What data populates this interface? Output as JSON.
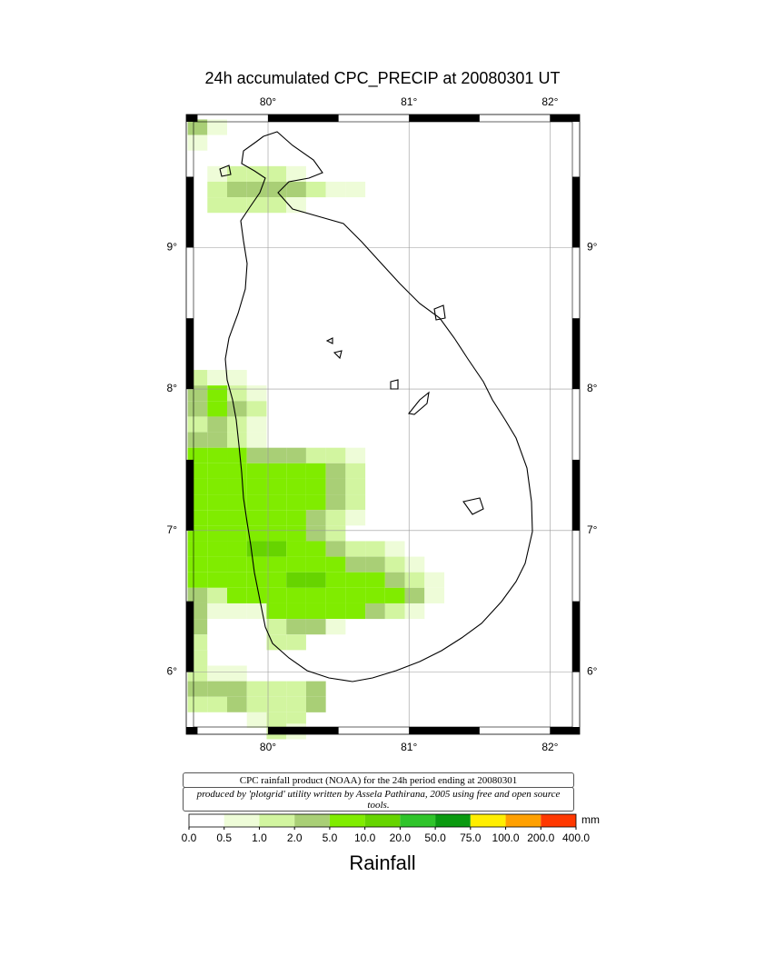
{
  "title": "24h accumulated CPC_PRECIP  at 20080301 UT",
  "map": {
    "xlim": [
      79.42,
      82.21
    ],
    "ylim": [
      5.56,
      9.94
    ],
    "xticks": [
      {
        "value": 80,
        "label": "80°"
      },
      {
        "value": 81,
        "label": "81°"
      },
      {
        "value": 82,
        "label": "82°"
      }
    ],
    "yticks": [
      {
        "value": 9,
        "label": "9°"
      },
      {
        "value": 8,
        "label": "8°"
      },
      {
        "value": 7,
        "label": "7°"
      },
      {
        "value": 6,
        "label": "6°"
      }
    ],
    "grid": true,
    "rainfall_rows": [
      {
        "lat": 9.85,
        "lon0": 79.5,
        "mm": [
          2,
          0.7
        ]
      },
      {
        "lat": 9.74,
        "lon0": 79.5,
        "mm": [
          0.7
        ]
      },
      {
        "lat": 9.52,
        "lon0": 79.64,
        "mm": [
          0.7,
          1,
          1,
          1,
          0.7
        ]
      },
      {
        "lat": 9.41,
        "lon0": 79.64,
        "mm": [
          1.5,
          2,
          2,
          2,
          2,
          1,
          0.7,
          0.7
        ]
      },
      {
        "lat": 9.3,
        "lon0": 79.64,
        "mm": [
          1,
          1,
          1,
          1,
          0.7
        ]
      },
      {
        "lat": 8.08,
        "lon0": 79.5,
        "mm": [
          1,
          0.7,
          0.5
        ]
      },
      {
        "lat": 7.97,
        "lon0": 79.5,
        "mm": [
          2,
          5,
          1,
          0.5
        ]
      },
      {
        "lat": 7.86,
        "lon0": 79.5,
        "mm": [
          2,
          5,
          2,
          1
        ]
      },
      {
        "lat": 7.75,
        "lon0": 79.5,
        "mm": [
          1,
          2,
          1,
          0.7
        ]
      },
      {
        "lat": 7.64,
        "lon0": 79.5,
        "mm": [
          2,
          2,
          1,
          0.7
        ]
      },
      {
        "lat": 7.53,
        "lon0": 79.5,
        "mm": [
          5,
          5,
          5,
          2,
          2,
          2,
          1,
          1,
          0.7
        ]
      },
      {
        "lat": 7.42,
        "lon0": 79.5,
        "mm": [
          5,
          5,
          5,
          5,
          5,
          5,
          5,
          2,
          1
        ]
      },
      {
        "lat": 7.31,
        "lon0": 79.5,
        "mm": [
          5,
          5,
          5,
          5,
          5,
          5,
          5,
          2,
          1
        ]
      },
      {
        "lat": 7.2,
        "lon0": 79.5,
        "mm": [
          5,
          5,
          5,
          5,
          5,
          5,
          5,
          2,
          1
        ]
      },
      {
        "lat": 7.09,
        "lon0": 79.5,
        "mm": [
          5,
          5,
          5,
          5,
          5,
          5,
          2,
          1,
          0.7
        ]
      },
      {
        "lat": 6.98,
        "lon0": 79.5,
        "mm": [
          5,
          5,
          5,
          5,
          5,
          5,
          2,
          1
        ]
      },
      {
        "lat": 6.87,
        "lon0": 79.5,
        "mm": [
          5,
          5,
          5,
          10,
          10,
          5,
          5,
          2,
          1,
          1,
          0.7
        ]
      },
      {
        "lat": 6.76,
        "lon0": 79.5,
        "mm": [
          5,
          5,
          5,
          5,
          5,
          5,
          5,
          5,
          2,
          2,
          1,
          0.5
        ]
      },
      {
        "lat": 6.65,
        "lon0": 79.5,
        "mm": [
          5,
          5,
          5,
          5,
          5,
          10,
          10,
          5,
          5,
          5,
          2,
          1,
          0.5
        ]
      },
      {
        "lat": 6.54,
        "lon0": 79.5,
        "mm": [
          2,
          1,
          5,
          5,
          5,
          5,
          5,
          5,
          5,
          5,
          5,
          2,
          0.5
        ]
      },
      {
        "lat": 6.43,
        "lon0": 79.5,
        "mm": [
          2,
          0.7,
          0.7,
          0.7,
          5,
          5,
          5,
          5,
          5,
          2,
          1,
          0.5
        ]
      },
      {
        "lat": 6.32,
        "lon0": 79.5,
        "mm": [
          2,
          0,
          0,
          0,
          1,
          2,
          2,
          0.7
        ]
      },
      {
        "lat": 6.21,
        "lon0": 79.5,
        "mm": [
          1,
          0,
          0,
          0,
          1,
          1
        ]
      },
      {
        "lat": 6.1,
        "lon0": 79.5,
        "mm": [
          1
        ]
      },
      {
        "lat": 5.99,
        "lon0": 79.5,
        "mm": [
          1,
          0.7,
          0.7
        ]
      },
      {
        "lat": 5.88,
        "lon0": 79.5,
        "mm": [
          2,
          2,
          2,
          1,
          1,
          1,
          2
        ]
      },
      {
        "lat": 5.77,
        "lon0": 79.5,
        "mm": [
          1,
          1,
          2,
          1,
          1,
          1,
          2
        ]
      },
      {
        "lat": 5.66,
        "lon0": 79.5,
        "mm": [
          0,
          0,
          0,
          0.7,
          1,
          1.5
        ]
      },
      {
        "lat": 5.58,
        "lon0": 80.06,
        "mm": [
          1.5,
          0.7
        ]
      }
    ]
  },
  "notes": [
    "CPC rainfall product (NOAA) for the 24h period ending at 20080301",
    "produced by 'plotgrid' utility written by Assela Pathirana, 2005 using free and open source tools."
  ],
  "colorbar": {
    "ticks": [
      {
        "value": 0,
        "label": "0.0"
      },
      {
        "value": 0.5,
        "label": "0.5"
      },
      {
        "value": 1,
        "label": "1.0"
      },
      {
        "value": 2,
        "label": "2.0"
      },
      {
        "value": 5,
        "label": "5.0"
      },
      {
        "value": 10,
        "label": "10.0"
      },
      {
        "value": 20,
        "label": "20.0"
      },
      {
        "value": 50,
        "label": "50.0"
      },
      {
        "value": 75,
        "label": "75.0"
      },
      {
        "value": 100,
        "label": "100.0"
      },
      {
        "value": 200,
        "label": "200.0"
      },
      {
        "value": 400,
        "label": "400.0"
      }
    ],
    "colors": [
      "#ffffff",
      "#eefcd8",
      "#d2f5a0",
      "#a9cf76",
      "#80ec00",
      "#66d400",
      "#2fc42a",
      "#0a9a10",
      "#ffee00",
      "#ffa000",
      "#ff3800",
      "#ee66cc"
    ],
    "unit": "mm",
    "label": "Rainfall"
  }
}
